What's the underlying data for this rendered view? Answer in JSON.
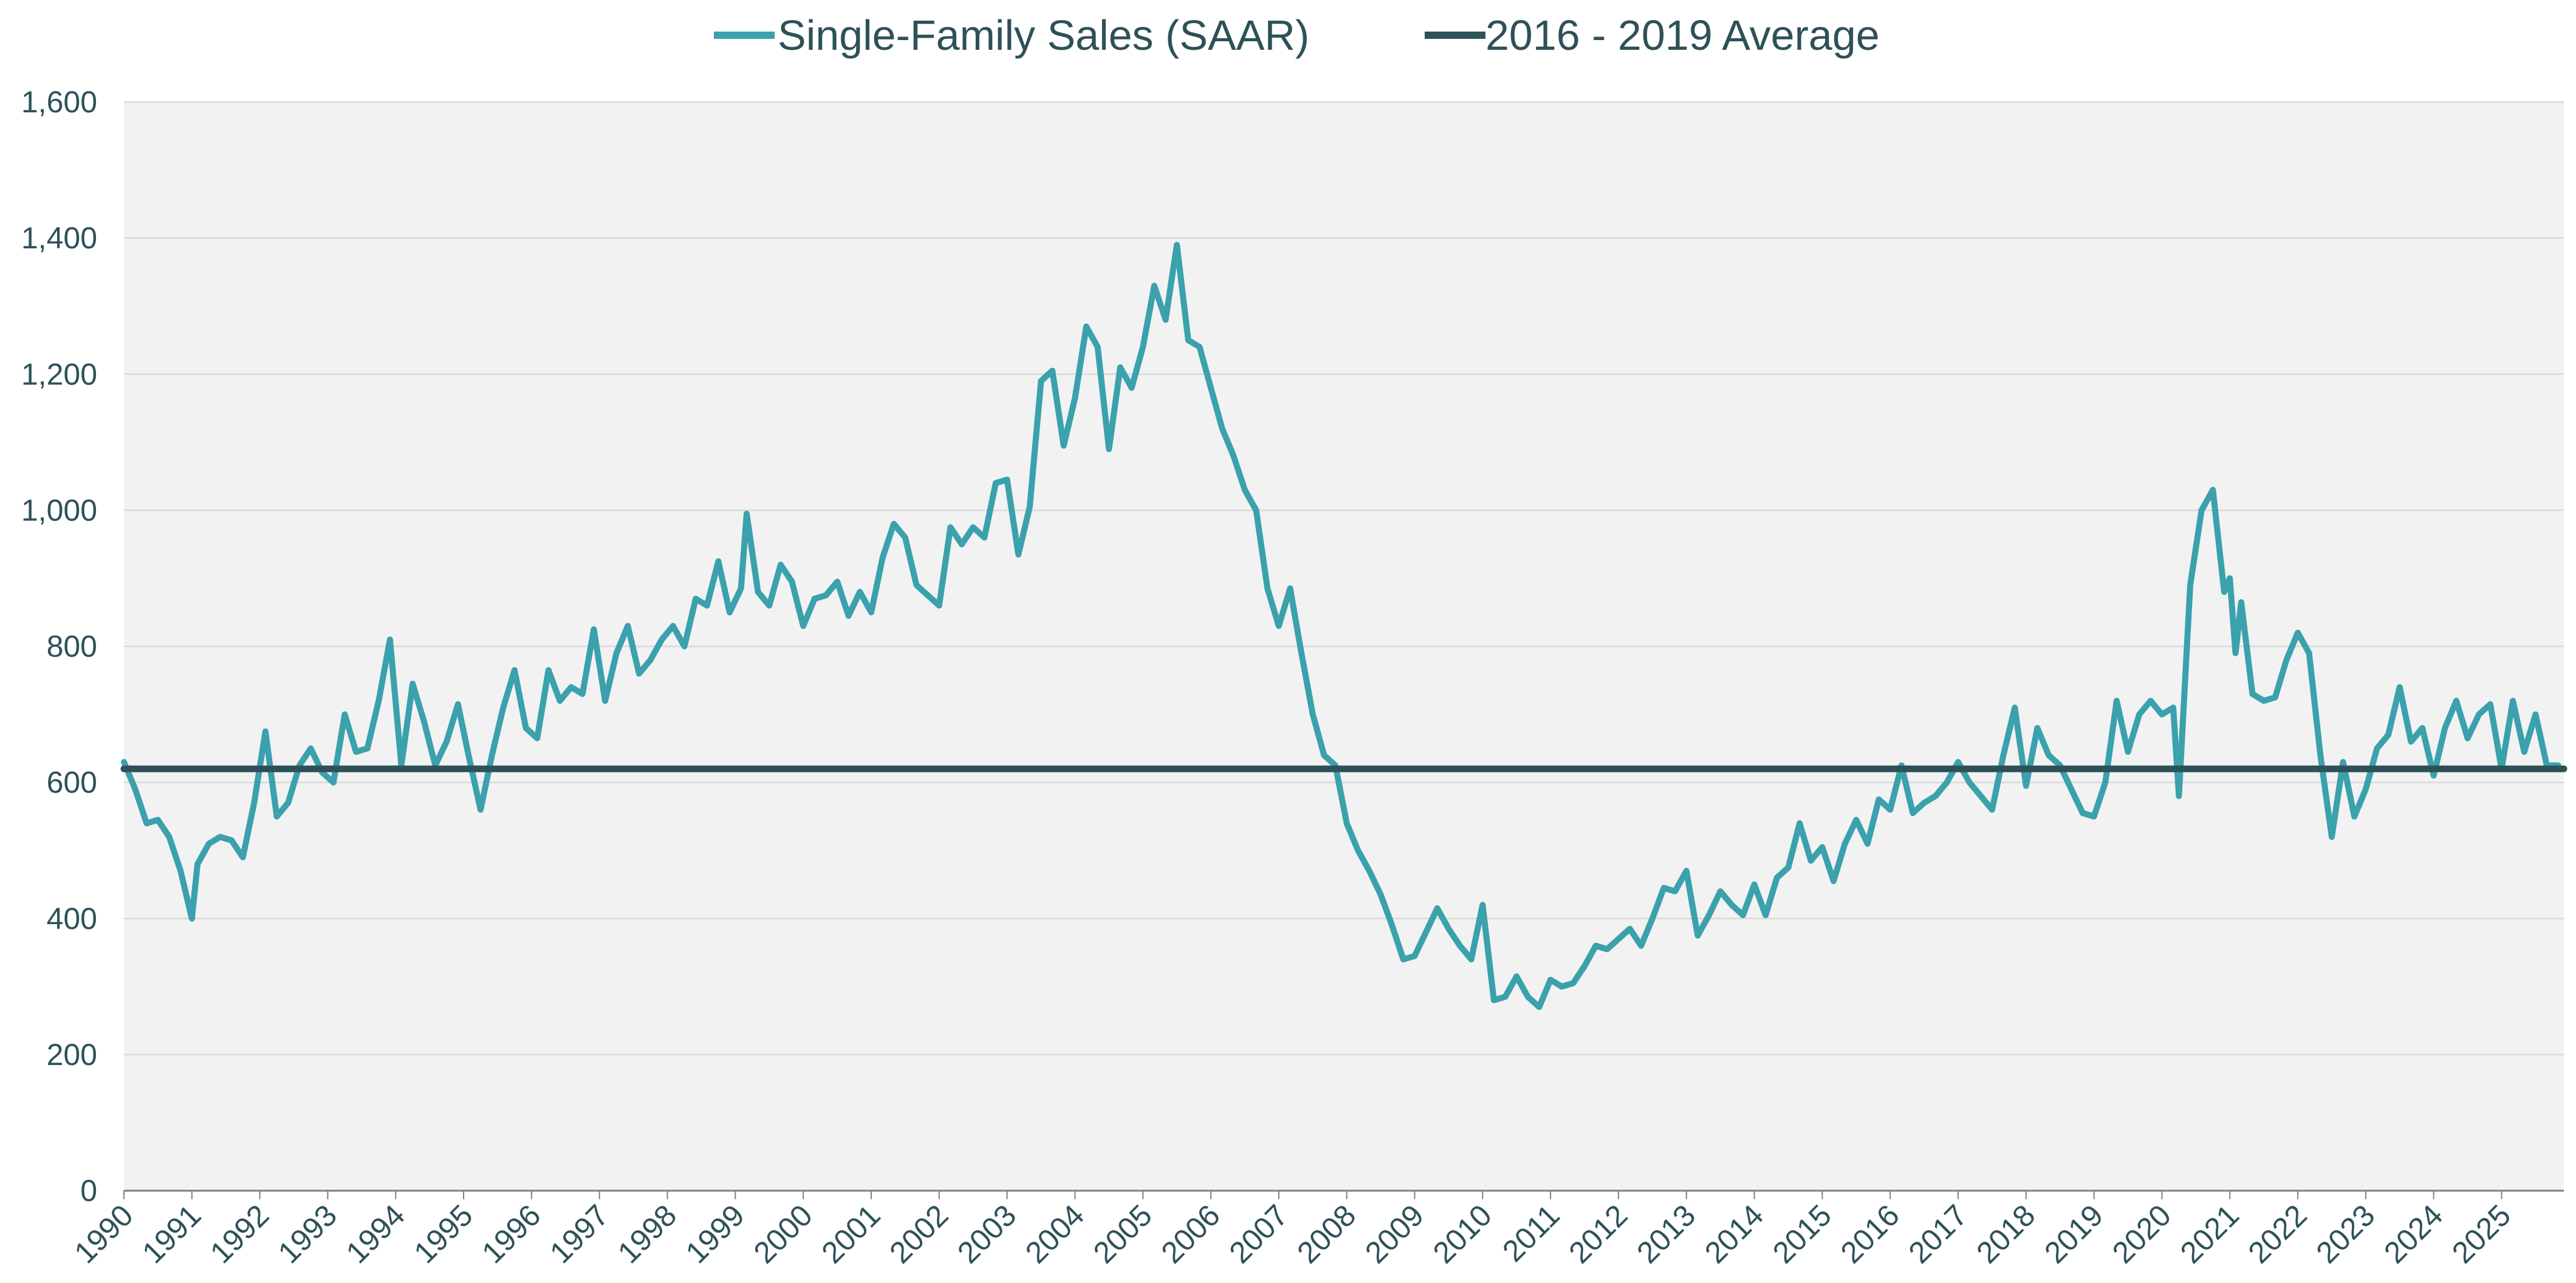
{
  "colors": {
    "series_line": "#3aa1ad",
    "average_line": "#2e5158",
    "plot_background": "#f2f2f2",
    "grid": "#d9d9d9",
    "text": "#2e5158"
  },
  "chart_data": {
    "type": "line",
    "title": "",
    "xlabel": "",
    "ylabel": "",
    "ylim": [
      0,
      1600
    ],
    "xlim": [
      "1990-01",
      "2025-12"
    ],
    "grid": "horizontal",
    "legend_position": "top-center",
    "y_ticks": [
      "0",
      "200",
      "400",
      "600",
      "800",
      "1,000",
      "1,200",
      "1,400",
      "1,600"
    ],
    "x_ticks": [
      "1990",
      "1991",
      "1992",
      "1993",
      "1994",
      "1995",
      "1996",
      "1997",
      "1998",
      "1999",
      "2000",
      "2001",
      "2002",
      "2003",
      "2004",
      "2005",
      "2006",
      "2007",
      "2008",
      "2009",
      "2010",
      "2011",
      "2012",
      "2013",
      "2014",
      "2015",
      "2016",
      "2017",
      "2018",
      "2019",
      "2020",
      "2021",
      "2022",
      "2023",
      "2024",
      "2025"
    ],
    "series": [
      {
        "name": "Single-Family Sales (SAAR)",
        "points": [
          [
            "1990-01",
            630
          ],
          [
            "1990-03",
            590
          ],
          [
            "1990-05",
            540
          ],
          [
            "1990-07",
            545
          ],
          [
            "1990-09",
            520
          ],
          [
            "1990-11",
            470
          ],
          [
            "1991-01",
            400
          ],
          [
            "1991-02",
            480
          ],
          [
            "1991-04",
            510
          ],
          [
            "1991-06",
            520
          ],
          [
            "1991-08",
            515
          ],
          [
            "1991-10",
            490
          ],
          [
            "1991-12",
            570
          ],
          [
            "1992-02",
            675
          ],
          [
            "1992-04",
            550
          ],
          [
            "1992-06",
            570
          ],
          [
            "1992-08",
            625
          ],
          [
            "1992-10",
            650
          ],
          [
            "1992-12",
            615
          ],
          [
            "1993-02",
            600
          ],
          [
            "1993-04",
            700
          ],
          [
            "1993-06",
            645
          ],
          [
            "1993-08",
            650
          ],
          [
            "1993-10",
            720
          ],
          [
            "1993-12",
            810
          ],
          [
            "1994-02",
            625
          ],
          [
            "1994-04",
            745
          ],
          [
            "1994-06",
            690
          ],
          [
            "1994-08",
            625
          ],
          [
            "1994-10",
            660
          ],
          [
            "1994-12",
            715
          ],
          [
            "1995-02",
            635
          ],
          [
            "1995-04",
            560
          ],
          [
            "1995-06",
            640
          ],
          [
            "1995-08",
            710
          ],
          [
            "1995-10",
            765
          ],
          [
            "1995-12",
            680
          ],
          [
            "1996-02",
            665
          ],
          [
            "1996-04",
            765
          ],
          [
            "1996-06",
            720
          ],
          [
            "1996-08",
            740
          ],
          [
            "1996-10",
            730
          ],
          [
            "1996-12",
            825
          ],
          [
            "1997-02",
            720
          ],
          [
            "1997-04",
            790
          ],
          [
            "1997-06",
            830
          ],
          [
            "1997-08",
            760
          ],
          [
            "1997-10",
            780
          ],
          [
            "1997-12",
            810
          ],
          [
            "1998-02",
            830
          ],
          [
            "1998-04",
            800
          ],
          [
            "1998-06",
            870
          ],
          [
            "1998-08",
            860
          ],
          [
            "1998-10",
            925
          ],
          [
            "1998-12",
            850
          ],
          [
            "1999-02",
            885
          ],
          [
            "1999-03",
            995
          ],
          [
            "1999-05",
            880
          ],
          [
            "1999-07",
            860
          ],
          [
            "1999-09",
            920
          ],
          [
            "1999-11",
            895
          ],
          [
            "2000-01",
            830
          ],
          [
            "2000-03",
            870
          ],
          [
            "2000-05",
            875
          ],
          [
            "2000-07",
            895
          ],
          [
            "2000-09",
            845
          ],
          [
            "2000-11",
            880
          ],
          [
            "2001-01",
            850
          ],
          [
            "2001-03",
            930
          ],
          [
            "2001-05",
            980
          ],
          [
            "2001-07",
            960
          ],
          [
            "2001-09",
            890
          ],
          [
            "2001-11",
            875
          ],
          [
            "2002-01",
            860
          ],
          [
            "2002-03",
            975
          ],
          [
            "2002-05",
            950
          ],
          [
            "2002-07",
            975
          ],
          [
            "2002-09",
            960
          ],
          [
            "2002-11",
            1040
          ],
          [
            "2003-01",
            1045
          ],
          [
            "2003-03",
            935
          ],
          [
            "2003-05",
            1005
          ],
          [
            "2003-07",
            1190
          ],
          [
            "2003-09",
            1205
          ],
          [
            "2003-11",
            1095
          ],
          [
            "2004-01",
            1165
          ],
          [
            "2004-03",
            1270
          ],
          [
            "2004-05",
            1240
          ],
          [
            "2004-07",
            1090
          ],
          [
            "2004-09",
            1210
          ],
          [
            "2004-11",
            1180
          ],
          [
            "2005-01",
            1240
          ],
          [
            "2005-03",
            1330
          ],
          [
            "2005-05",
            1280
          ],
          [
            "2005-07",
            1390
          ],
          [
            "2005-09",
            1250
          ],
          [
            "2005-11",
            1240
          ],
          [
            "2006-01",
            1180
          ],
          [
            "2006-03",
            1120
          ],
          [
            "2006-05",
            1080
          ],
          [
            "2006-07",
            1030
          ],
          [
            "2006-09",
            1000
          ],
          [
            "2006-11",
            885
          ],
          [
            "2007-01",
            830
          ],
          [
            "2007-03",
            885
          ],
          [
            "2007-05",
            790
          ],
          [
            "2007-07",
            700
          ],
          [
            "2007-09",
            640
          ],
          [
            "2007-11",
            625
          ],
          [
            "2008-01",
            540
          ],
          [
            "2008-03",
            500
          ],
          [
            "2008-05",
            470
          ],
          [
            "2008-07",
            435
          ],
          [
            "2008-09",
            390
          ],
          [
            "2008-11",
            340
          ],
          [
            "2009-01",
            345
          ],
          [
            "2009-03",
            380
          ],
          [
            "2009-05",
            415
          ],
          [
            "2009-07",
            385
          ],
          [
            "2009-09",
            360
          ],
          [
            "2009-11",
            340
          ],
          [
            "2010-01",
            420
          ],
          [
            "2010-03",
            280
          ],
          [
            "2010-05",
            285
          ],
          [
            "2010-07",
            315
          ],
          [
            "2010-09",
            285
          ],
          [
            "2010-11",
            270
          ],
          [
            "2011-01",
            310
          ],
          [
            "2011-03",
            300
          ],
          [
            "2011-05",
            305
          ],
          [
            "2011-07",
            330
          ],
          [
            "2011-09",
            360
          ],
          [
            "2011-11",
            355
          ],
          [
            "2012-01",
            370
          ],
          [
            "2012-03",
            385
          ],
          [
            "2012-05",
            360
          ],
          [
            "2012-07",
            400
          ],
          [
            "2012-09",
            445
          ],
          [
            "2012-11",
            440
          ],
          [
            "2013-01",
            470
          ],
          [
            "2013-03",
            375
          ],
          [
            "2013-05",
            405
          ],
          [
            "2013-07",
            440
          ],
          [
            "2013-09",
            420
          ],
          [
            "2013-11",
            405
          ],
          [
            "2014-01",
            450
          ],
          [
            "2014-03",
            405
          ],
          [
            "2014-05",
            460
          ],
          [
            "2014-07",
            475
          ],
          [
            "2014-09",
            540
          ],
          [
            "2014-11",
            485
          ],
          [
            "2015-01",
            505
          ],
          [
            "2015-03",
            455
          ],
          [
            "2015-05",
            510
          ],
          [
            "2015-07",
            545
          ],
          [
            "2015-09",
            510
          ],
          [
            "2015-11",
            575
          ],
          [
            "2016-01",
            560
          ],
          [
            "2016-03",
            625
          ],
          [
            "2016-05",
            555
          ],
          [
            "2016-07",
            570
          ],
          [
            "2016-09",
            580
          ],
          [
            "2016-11",
            600
          ],
          [
            "2017-01",
            630
          ],
          [
            "2017-03",
            600
          ],
          [
            "2017-05",
            580
          ],
          [
            "2017-07",
            560
          ],
          [
            "2017-09",
            640
          ],
          [
            "2017-11",
            710
          ],
          [
            "2018-01",
            595
          ],
          [
            "2018-03",
            680
          ],
          [
            "2018-05",
            640
          ],
          [
            "2018-07",
            625
          ],
          [
            "2018-09",
            590
          ],
          [
            "2018-11",
            555
          ],
          [
            "2019-01",
            550
          ],
          [
            "2019-03",
            600
          ],
          [
            "2019-05",
            720
          ],
          [
            "2019-07",
            645
          ],
          [
            "2019-09",
            700
          ],
          [
            "2019-11",
            720
          ],
          [
            "2020-01",
            700
          ],
          [
            "2020-03",
            710
          ],
          [
            "2020-04",
            580
          ],
          [
            "2020-06",
            890
          ],
          [
            "2020-08",
            1000
          ],
          [
            "2020-10",
            1030
          ],
          [
            "2020-12",
            880
          ],
          [
            "2021-01",
            900
          ],
          [
            "2021-02",
            790
          ],
          [
            "2021-03",
            865
          ],
          [
            "2021-05",
            730
          ],
          [
            "2021-07",
            720
          ],
          [
            "2021-09",
            725
          ],
          [
            "2021-11",
            780
          ],
          [
            "2022-01",
            820
          ],
          [
            "2022-03",
            790
          ],
          [
            "2022-05",
            640
          ],
          [
            "2022-07",
            520
          ],
          [
            "2022-09",
            630
          ],
          [
            "2022-11",
            550
          ],
          [
            "2023-01",
            590
          ],
          [
            "2023-03",
            650
          ],
          [
            "2023-05",
            670
          ],
          [
            "2023-07",
            740
          ],
          [
            "2023-09",
            660
          ],
          [
            "2023-11",
            680
          ],
          [
            "2024-01",
            610
          ],
          [
            "2024-03",
            680
          ],
          [
            "2024-05",
            720
          ],
          [
            "2024-07",
            665
          ],
          [
            "2024-09",
            700
          ],
          [
            "2024-11",
            715
          ],
          [
            "2025-01",
            620
          ],
          [
            "2025-03",
            720
          ],
          [
            "2025-05",
            645
          ],
          [
            "2025-07",
            700
          ],
          [
            "2025-09",
            625
          ],
          [
            "2025-11",
            625
          ]
        ]
      },
      {
        "name": "2016 - 2019 Average",
        "points": [
          [
            "1990-01",
            620
          ],
          [
            "2025-12",
            620
          ]
        ]
      }
    ]
  }
}
